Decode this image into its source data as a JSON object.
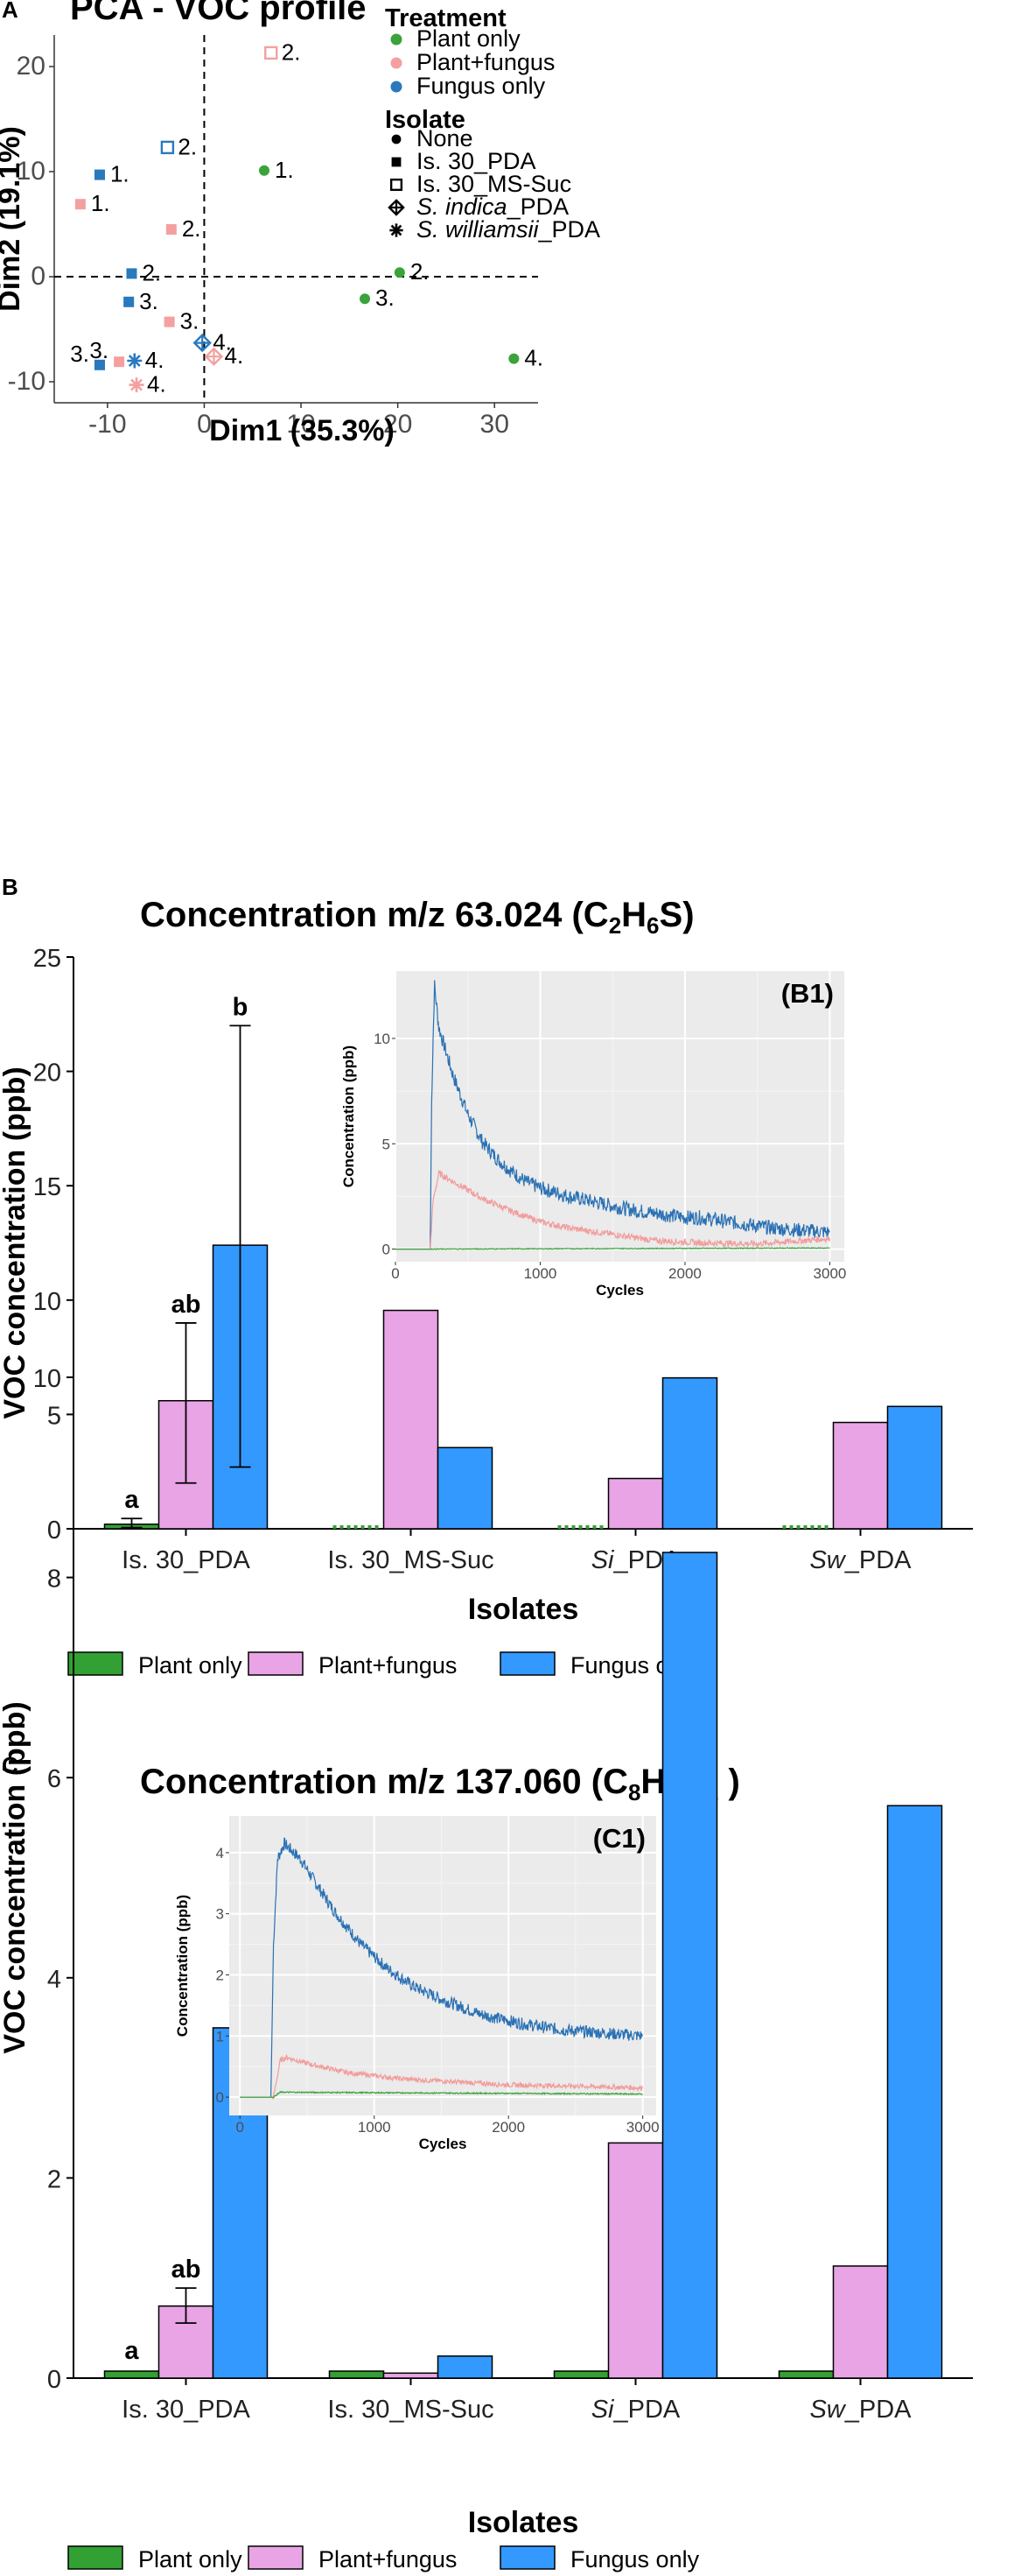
{
  "chart_data": [
    {
      "type": "scatter",
      "panel": "A",
      "title": "PCA - VOC profile",
      "xlabel": "Dim1 (35.3%)",
      "ylabel": "Dim2 (19.1%)",
      "xlim": [
        -15.5,
        34.5
      ],
      "ylim": [
        -12,
        23
      ],
      "xticks": [
        -10,
        0,
        10,
        20,
        30
      ],
      "yticks": [
        -10,
        0,
        10,
        20
      ],
      "legend": {
        "treatment_title": "Treatment",
        "treatment": [
          {
            "label": "Plant only",
            "color": "#3aa33a"
          },
          {
            "label": "Plant+fungus",
            "color": "#f4a0a0"
          },
          {
            "label": "Fungus only",
            "color": "#2a79bd"
          }
        ],
        "isolate_title": "Isolate",
        "isolates": [
          {
            "label": "None",
            "shape": "circle"
          },
          {
            "label": "Is. 30_PDA",
            "shape": "square"
          },
          {
            "label": "Is. 30_MS-Suc",
            "shape": "open-square"
          },
          {
            "label": "S. indica_PDA",
            "shape": "diamond-plus",
            "italic": "S. indica",
            "rest": "_PDA"
          },
          {
            "label": "S. williamsii_PDA",
            "shape": "asterisk",
            "italic": "S. williamsii",
            "rest": "_PDA"
          }
        ]
      },
      "points": [
        {
          "x": 6.2,
          "y": 10.1,
          "treatment": "Plant only",
          "shape": "circle",
          "label": "1."
        },
        {
          "x": 20.2,
          "y": 0.4,
          "treatment": "Plant only",
          "shape": "circle",
          "label": "2."
        },
        {
          "x": 16.6,
          "y": -2.1,
          "treatment": "Plant only",
          "shape": "circle",
          "label": "3."
        },
        {
          "x": 32.0,
          "y": -7.8,
          "treatment": "Plant only",
          "shape": "circle",
          "label": "4."
        },
        {
          "x": -12.8,
          "y": 6.9,
          "treatment": "Plant+fungus",
          "shape": "square",
          "label": "1."
        },
        {
          "x": -3.4,
          "y": 4.5,
          "treatment": "Plant+fungus",
          "shape": "square",
          "label": "2."
        },
        {
          "x": -3.6,
          "y": -4.3,
          "treatment": "Plant+fungus",
          "shape": "square",
          "label": "3."
        },
        {
          "x": -8.8,
          "y": -8.1,
          "treatment": "Plant+fungus",
          "shape": "square",
          "label": "3.",
          "label_side": "left"
        },
        {
          "x": 6.9,
          "y": 21.3,
          "treatment": "Plant+fungus",
          "shape": "open-square",
          "label": "2."
        },
        {
          "x": 1.0,
          "y": -7.6,
          "treatment": "Plant+fungus",
          "shape": "diamond-plus",
          "label": "4."
        },
        {
          "x": -7.0,
          "y": -10.3,
          "treatment": "Plant+fungus",
          "shape": "asterisk",
          "label": "4."
        },
        {
          "x": -10.8,
          "y": 9.7,
          "treatment": "Fungus only",
          "shape": "square",
          "label": "1."
        },
        {
          "x": -7.5,
          "y": 0.3,
          "treatment": "Fungus only",
          "shape": "square",
          "label": "2."
        },
        {
          "x": -7.8,
          "y": -2.4,
          "treatment": "Fungus only",
          "shape": "square",
          "label": "3."
        },
        {
          "x": -10.8,
          "y": -8.4,
          "treatment": "Fungus only",
          "shape": "square",
          "label": "3.",
          "label_side": "left"
        },
        {
          "x": -3.8,
          "y": 12.3,
          "treatment": "Fungus only",
          "shape": "open-square",
          "label": "2."
        },
        {
          "x": -0.2,
          "y": -6.3,
          "treatment": "Fungus only",
          "shape": "diamond-plus",
          "label": "4."
        },
        {
          "x": -7.2,
          "y": -8.0,
          "treatment": "Fungus only",
          "shape": "asterisk",
          "label": "4."
        }
      ]
    },
    {
      "type": "bar",
      "panel": "B",
      "title_main": "Concentration m/z 63.024 (C",
      "title_subs": [
        "2",
        "6"
      ],
      "title_parts": [
        "H",
        "S)"
      ],
      "xlabel": "Isolates",
      "ylabel": "VOC concentration (ppb)",
      "ylim": [
        0,
        25
      ],
      "yticks": [
        0,
        5,
        10,
        15,
        20,
        25
      ],
      "categories": [
        {
          "plain": "Is. 30_PDA"
        },
        {
          "plain": "Is. 30_MS-Suc"
        },
        {
          "italic": "Si",
          "rest": "_PDA"
        },
        {
          "italic": "Sw",
          "rest": "_PDA"
        }
      ],
      "series": [
        {
          "name": "Plant only",
          "color": "#33a033",
          "values": [
            0.2,
            0.15,
            0.15,
            0.15
          ],
          "dashed": [
            false,
            true,
            true,
            true
          ],
          "errors": [
            [
              0.05,
              0.45
            ],
            null,
            null,
            null
          ],
          "letters": [
            "a",
            null,
            null,
            null
          ]
        },
        {
          "name": "Plant+fungus",
          "color": "#e8a4e4",
          "values": [
            5.6,
            9.55,
            2.2,
            4.65
          ],
          "errors": [
            [
              2.0,
              9.0
            ],
            null,
            null,
            null
          ],
          "letters": [
            "ab",
            null,
            null,
            null
          ]
        },
        {
          "name": "Fungus only",
          "color": "#3399ff",
          "values": [
            12.4,
            3.55,
            6.6,
            5.35
          ],
          "errors": [
            [
              2.7,
              22.0
            ],
            null,
            null,
            null
          ],
          "letters": [
            "b",
            null,
            null,
            null
          ]
        }
      ],
      "inset": {
        "tag": "(B1)",
        "xlabel": "Cycles",
        "ylabel": "Concentration (ppb)",
        "xlim": [
          0,
          3100
        ],
        "ylim": [
          -0.6,
          13.2
        ],
        "xticks": [
          0,
          1000,
          2000,
          3000
        ],
        "yticks": [
          0,
          5,
          10
        ],
        "lines": [
          {
            "name": "Fungus only",
            "color": "#2a71b4",
            "points": [
              [
                0,
                0
              ],
              [
                200,
                0
              ],
              [
                240,
                0
              ],
              [
                250,
                7
              ],
              [
                260,
                10
              ],
              [
                270,
                12.5
              ],
              [
                300,
                10.5
              ],
              [
                400,
                8.2
              ],
              [
                500,
                6.4
              ],
              [
                600,
                5.1
              ],
              [
                700,
                4.3
              ],
              [
                800,
                3.7
              ],
              [
                900,
                3.2
              ],
              [
                1000,
                2.9
              ],
              [
                1200,
                2.5
              ],
              [
                1400,
                2.2
              ],
              [
                1600,
                1.9
              ],
              [
                1800,
                1.7
              ],
              [
                2000,
                1.5
              ],
              [
                2100,
                1.5
              ],
              [
                2200,
                1.4
              ],
              [
                2400,
                1.2
              ],
              [
                2600,
                1.0
              ],
              [
                2800,
                0.9
              ],
              [
                3000,
                0.8
              ]
            ],
            "noise": 0.35
          },
          {
            "name": "Plant+fungus",
            "color": "#f29c9c",
            "points": [
              [
                0,
                0
              ],
              [
                240,
                0
              ],
              [
                260,
                2.3
              ],
              [
                300,
                3.6
              ],
              [
                400,
                3.2
              ],
              [
                500,
                2.8
              ],
              [
                600,
                2.4
              ],
              [
                800,
                1.8
              ],
              [
                1000,
                1.3
              ],
              [
                1200,
                1.0
              ],
              [
                1500,
                0.7
              ],
              [
                1800,
                0.4
              ],
              [
                2100,
                0.3
              ],
              [
                2500,
                0.25
              ],
              [
                3000,
                0.5
              ]
            ],
            "noise": 0.15
          },
          {
            "name": "Plant only",
            "color": "#3aa33a",
            "points": [
              [
                0,
                0
              ],
              [
                240,
                0
              ],
              [
                3000,
                0.05
              ]
            ],
            "noise": 0.02
          }
        ]
      },
      "legend": [
        "Plant only",
        "Plant+fungus",
        "Fungus only"
      ]
    },
    {
      "type": "bar",
      "panel": "C",
      "title_main": "Concentration m/z 137.060 (C",
      "title_subs": [
        "8",
        "8",
        "2"
      ],
      "title_parts": [
        "H",
        "O",
        " )"
      ],
      "xlabel": "Isolates",
      "ylabel": "VOC concentration (ppb)",
      "ylim": [
        0,
        10
      ],
      "yticks": [
        0,
        2,
        4,
        6,
        8,
        10
      ],
      "categories": [
        {
          "plain": "Is. 30_PDA"
        },
        {
          "plain": "Is. 30_MS-Suc"
        },
        {
          "italic": "Si",
          "rest": "_PDA"
        },
        {
          "italic": "Sw",
          "rest": "_PDA"
        }
      ],
      "series": [
        {
          "name": "Plant only",
          "color": "#33a033",
          "values": [
            0.07,
            0.07,
            0.07,
            0.07
          ],
          "dashed": [
            false,
            false,
            false,
            false
          ],
          "errors": [
            null,
            null,
            null,
            null
          ],
          "letters": [
            "a",
            null,
            null,
            null
          ]
        },
        {
          "name": "Plant+fungus",
          "color": "#e8a4e4",
          "values": [
            0.72,
            0.05,
            2.35,
            1.12
          ],
          "errors": [
            [
              0.55,
              0.9
            ],
            null,
            null,
            null
          ],
          "letters": [
            "ab",
            null,
            null,
            null
          ]
        },
        {
          "name": "Fungus only",
          "color": "#3399ff",
          "values": [
            3.5,
            0.22,
            8.25,
            5.72
          ],
          "errors": [
            [
              2.8,
              4.18
            ],
            null,
            null,
            null
          ],
          "letters": [
            "b",
            null,
            null,
            null
          ]
        }
      ],
      "inset": {
        "tag": "(C1)",
        "xlabel": "Cycles",
        "ylabel": "Concentration (ppb)",
        "xlim": [
          -80,
          3100
        ],
        "ylim": [
          -0.3,
          4.6
        ],
        "xticks": [
          0,
          1000,
          2000,
          3000
        ],
        "yticks": [
          0,
          1,
          2,
          3,
          4
        ],
        "lines": [
          {
            "name": "Fungus only",
            "color": "#2a71b4",
            "points": [
              [
                0,
                0
              ],
              [
                230,
                0
              ],
              [
                250,
                2.5
              ],
              [
                280,
                3.9
              ],
              [
                330,
                4.15
              ],
              [
                450,
                3.9
              ],
              [
                550,
                3.55
              ],
              [
                700,
                3.05
              ],
              [
                900,
                2.5
              ],
              [
                1100,
                2.1
              ],
              [
                1300,
                1.8
              ],
              [
                1500,
                1.6
              ],
              [
                1800,
                1.35
              ],
              [
                2100,
                1.2
              ],
              [
                2400,
                1.1
              ],
              [
                2700,
                1.05
              ],
              [
                3000,
                1.0
              ]
            ],
            "noise": 0.1
          },
          {
            "name": "Plant+fungus",
            "color": "#f29c9c",
            "points": [
              [
                0,
                0
              ],
              [
                250,
                0
              ],
              [
                300,
                0.6
              ],
              [
                350,
                0.65
              ],
              [
                500,
                0.55
              ],
              [
                800,
                0.4
              ],
              [
                1200,
                0.3
              ],
              [
                1600,
                0.25
              ],
              [
                2000,
                0.2
              ],
              [
                2500,
                0.18
              ],
              [
                3000,
                0.15
              ]
            ],
            "noise": 0.04
          },
          {
            "name": "Plant only",
            "color": "#3aa33a",
            "points": [
              [
                0,
                0
              ],
              [
                250,
                0
              ],
              [
                300,
                0.08
              ],
              [
                3000,
                0.05
              ]
            ],
            "noise": 0.01
          }
        ]
      },
      "legend": [
        "Plant only",
        "Plant+fungus",
        "Fungus only"
      ]
    }
  ]
}
